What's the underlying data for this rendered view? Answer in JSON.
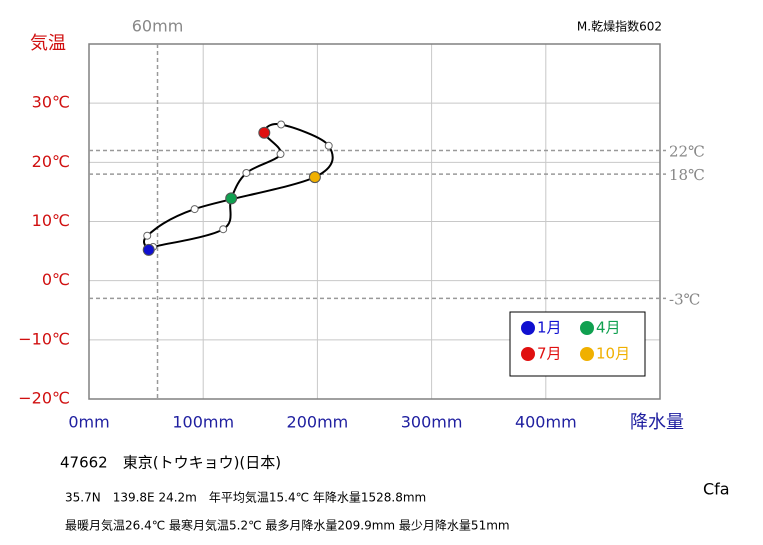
{
  "chart_data": {
    "type": "climograph",
    "title": "47662　東京(トウキョウ)(日本)",
    "info_lines": [
      "35.7N　139.8E 24.2m　年平均気温15.4℃ 年降水量1528.8mm",
      "最暖月気温26.4℃ 最寒月気温5.2℃ 最多月降水量209.9mm 最少月降水量51mm"
    ],
    "climate_class": "Cfa",
    "dryness_index": "M.乾燥指数602",
    "y_label": "気温",
    "x_label": "降水量",
    "x": [
      52.3,
      56.1,
      117.5,
      124.5,
      137.8,
      167.7,
      153.5,
      168.2,
      209.9,
      197.8,
      92.5,
      51.0
    ],
    "values": [
      5.2,
      5.7,
      8.7,
      13.9,
      18.2,
      21.4,
      25.0,
      26.4,
      22.8,
      17.5,
      12.1,
      7.6
    ],
    "xlim": [
      0,
      500
    ],
    "ylim": [
      -20,
      40
    ],
    "xticks": [
      {
        "value": 0,
        "label": "0mm"
      },
      {
        "value": 100,
        "label": "100mm"
      },
      {
        "value": 200,
        "label": "200mm"
      },
      {
        "value": 300,
        "label": "300mm"
      },
      {
        "value": 400,
        "label": "400mm"
      }
    ],
    "yticks": [
      {
        "value": -20,
        "label": "−20℃"
      },
      {
        "value": -10,
        "label": "−10℃"
      },
      {
        "value": 0,
        "label": "0℃"
      },
      {
        "value": 10,
        "label": "10℃"
      },
      {
        "value": 20,
        "label": "20℃"
      },
      {
        "value": 30,
        "label": "30℃"
      }
    ],
    "x_reference": [
      {
        "value": 60,
        "label": "60mm"
      }
    ],
    "y_reference": [
      {
        "value": 22,
        "label": "22℃"
      },
      {
        "value": 18,
        "label": "18℃"
      },
      {
        "value": -3,
        "label": "-3℃"
      }
    ],
    "highlights": [
      {
        "month": 1,
        "label": "1月",
        "color": "#1010d0"
      },
      {
        "month": 4,
        "label": "4月",
        "color": "#10a050"
      },
      {
        "month": 7,
        "label": "7月",
        "color": "#e01010"
      },
      {
        "month": 10,
        "label": "10月",
        "color": "#f0b000"
      }
    ],
    "grid": true
  }
}
